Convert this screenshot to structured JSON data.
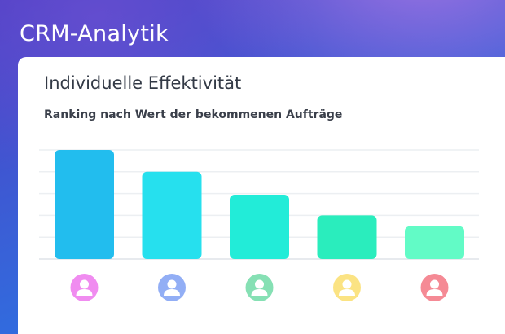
{
  "app": {
    "title": "CRM-Analytik"
  },
  "card": {
    "title": "Individuelle Effektivität",
    "subtitle": "Ranking nach Wert der bekommenen Aufträge"
  },
  "chart_data": {
    "type": "bar",
    "title": "",
    "xlabel": "",
    "ylabel": "",
    "categories": [
      "",
      "",
      "",
      "",
      ""
    ],
    "values": [
      100,
      80,
      59,
      40,
      30
    ],
    "ylim": [
      0,
      100
    ],
    "grid": true,
    "colors": [
      "#22bdee",
      "#26e0ee",
      "#22ecd8",
      "#2aedbd",
      "#62fbc6"
    ],
    "avatar_colors": [
      "#f08cf0",
      "#92aef5",
      "#86e0b4",
      "#fbe383",
      "#f58a95"
    ],
    "avatar_icon": "user-icon"
  }
}
